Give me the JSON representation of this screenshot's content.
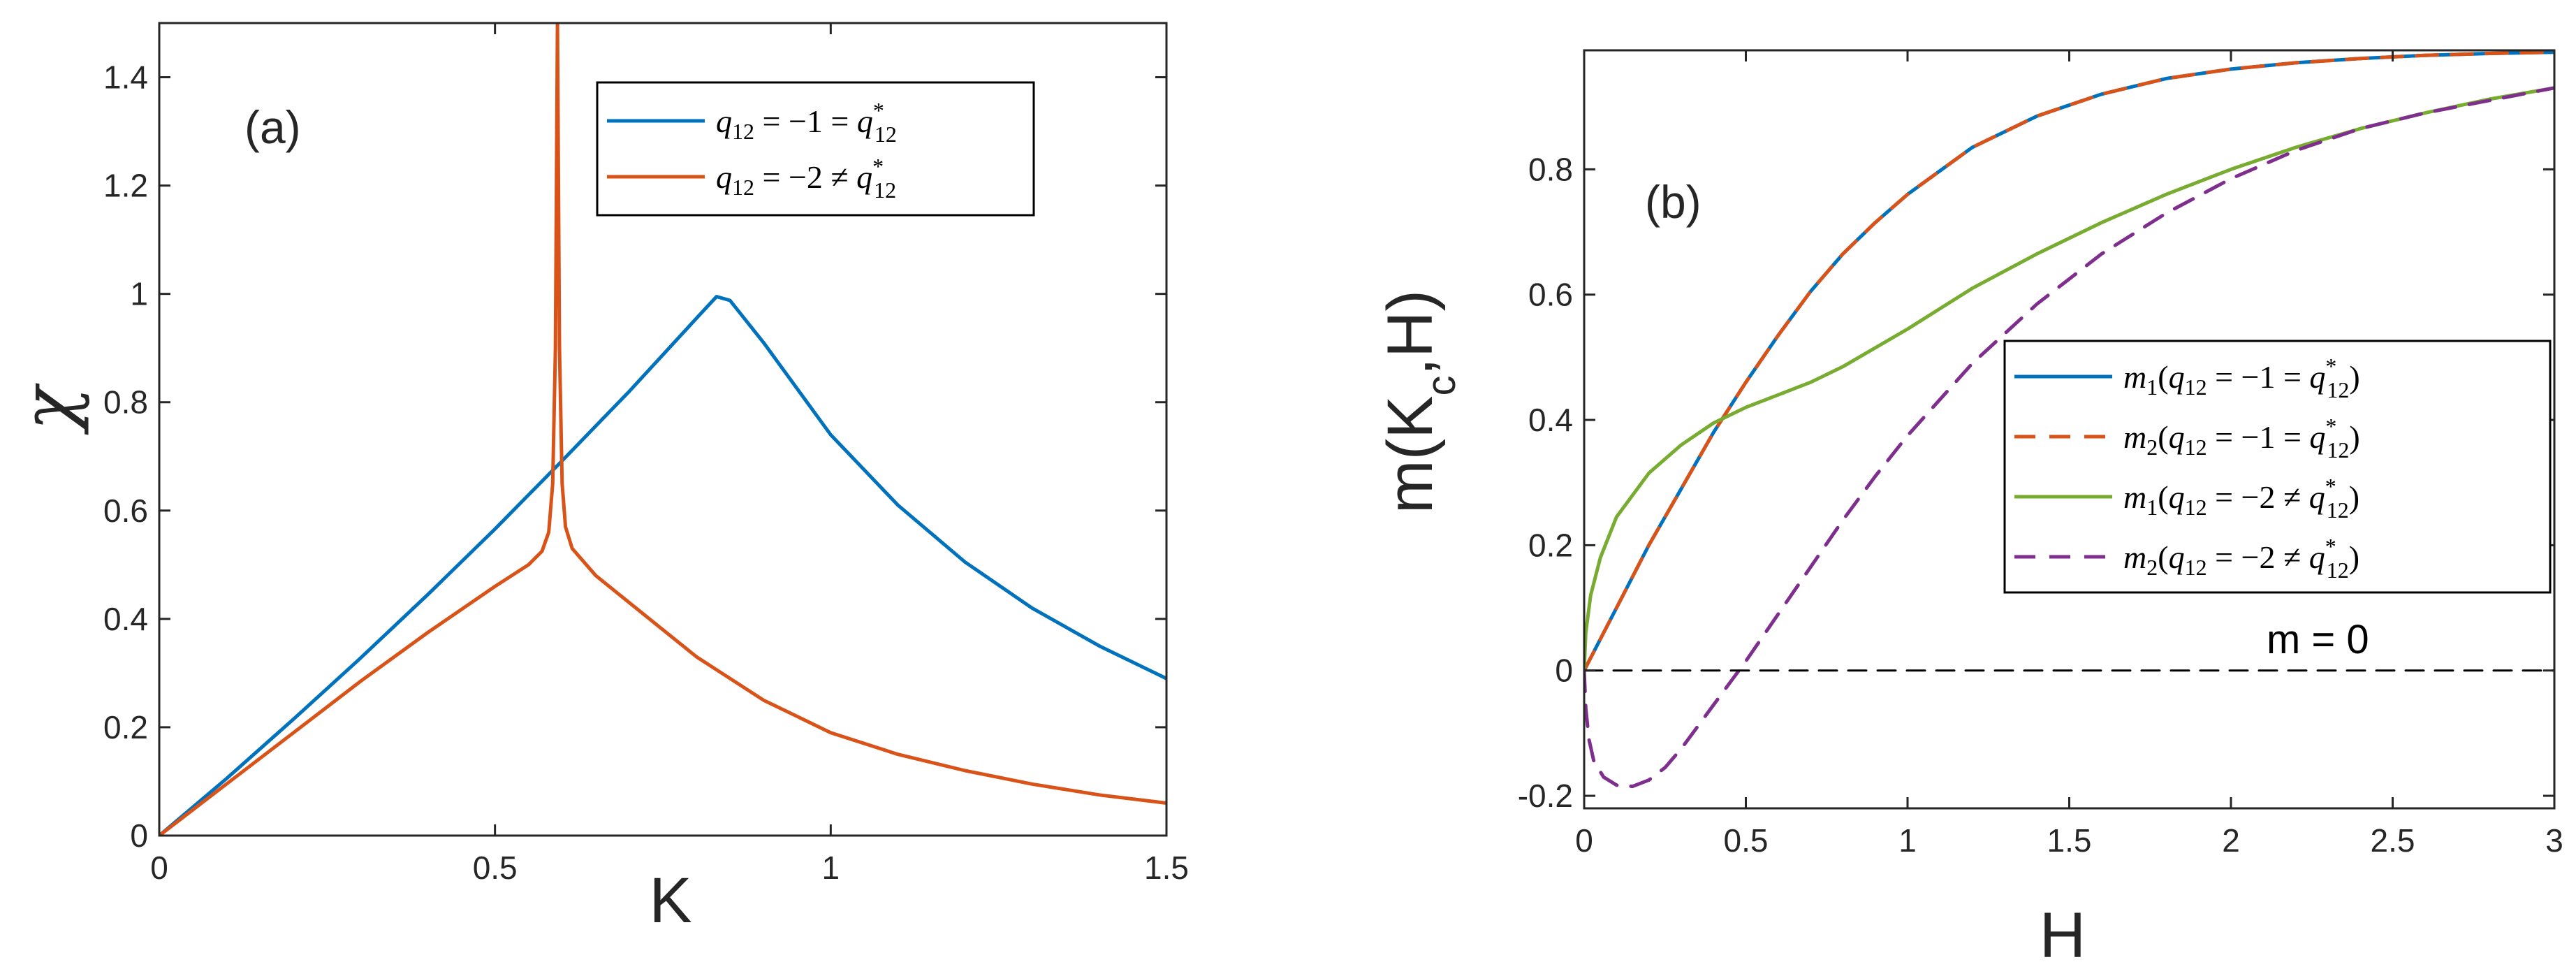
{
  "colors": {
    "blue": "#0072BD",
    "orange": "#D95319",
    "green": "#77AC30",
    "purple": "#7E2F8E",
    "black": "#000000",
    "axes": "#262626"
  },
  "chart_data": [
    {
      "type": "line",
      "panel_label": "(a)",
      "xlabel": "K",
      "ylabel": "χ",
      "xlim": [
        0,
        1.5
      ],
      "ylim": [
        0,
        1.5
      ],
      "xticks": [
        0,
        0.5,
        1,
        1.5
      ],
      "xtick_labels": [
        "0",
        "0.5",
        "1",
        "1.5"
      ],
      "yticks": [
        0,
        0.2,
        0.4,
        0.6,
        0.8,
        1.0,
        1.2,
        1.4
      ],
      "ytick_labels": [
        "0",
        "0.2",
        "0.4",
        "0.6",
        "0.8",
        "1",
        "1.2",
        "1.4"
      ],
      "grid": false,
      "legend_position": "top-right",
      "series": [
        {
          "name": "q12 = −1 = q12*",
          "color": "blue",
          "style": "solid",
          "x": [
            0,
            0.1,
            0.2,
            0.3,
            0.4,
            0.5,
            0.6,
            0.7,
            0.8,
            0.83,
            0.85,
            0.9,
            1.0,
            1.1,
            1.2,
            1.3,
            1.4,
            1.5
          ],
          "y": [
            0,
            0.105,
            0.215,
            0.328,
            0.445,
            0.566,
            0.692,
            0.82,
            0.955,
            0.995,
            0.988,
            0.91,
            0.74,
            0.61,
            0.505,
            0.42,
            0.35,
            0.29
          ]
        },
        {
          "name": "q12 = −2 ≠ q12*",
          "color": "orange",
          "style": "solid",
          "x": [
            0,
            0.1,
            0.2,
            0.3,
            0.4,
            0.5,
            0.55,
            0.57,
            0.58,
            0.586,
            0.59,
            0.593,
            0.596,
            0.6,
            0.605,
            0.615,
            0.65,
            0.7,
            0.8,
            0.9,
            1.0,
            1.1,
            1.2,
            1.3,
            1.4,
            1.5
          ],
          "y": [
            0,
            0.095,
            0.19,
            0.285,
            0.375,
            0.46,
            0.5,
            0.525,
            0.56,
            0.65,
            0.9,
            1.5,
            0.9,
            0.65,
            0.57,
            0.53,
            0.48,
            0.43,
            0.33,
            0.25,
            0.19,
            0.15,
            0.12,
            0.095,
            0.075,
            0.06
          ]
        }
      ],
      "legend_entries": [
        {
          "series": 0,
          "pre": "q",
          "sub": "12",
          "mid": " = −1 = q",
          "sup": "*",
          "sub2": "12",
          "suffix": ""
        },
        {
          "series": 1,
          "pre": "q",
          "sub": "12",
          "mid": " = −2 ≠ q",
          "sup": "*",
          "sub2": "12",
          "suffix": ""
        }
      ]
    },
    {
      "type": "line",
      "panel_label": "(b)",
      "xlabel": "H",
      "ylabel": "m(K",
      "ylabel_sub": "c",
      "ylabel_end": ",H)",
      "xlim": [
        0,
        3
      ],
      "ylim": [
        -0.22,
        0.99
      ],
      "xticks": [
        0,
        0.5,
        1,
        1.5,
        2,
        2.5,
        3
      ],
      "xtick_labels": [
        "0",
        "0.5",
        "1",
        "1.5",
        "2",
        "2.5",
        "3"
      ],
      "yticks": [
        -0.2,
        0,
        0.2,
        0.4,
        0.6,
        0.8
      ],
      "ytick_labels": [
        "-0.2",
        "0",
        "0.2",
        "0.4",
        "0.6",
        "0.8"
      ],
      "grid": false,
      "legend_position": "center-right",
      "annotation": "m = 0",
      "series": [
        {
          "name": "m1(q12 = −1 = q12*)",
          "color": "blue",
          "style": "solid",
          "x": [
            0,
            0.1,
            0.2,
            0.3,
            0.4,
            0.5,
            0.6,
            0.7,
            0.8,
            0.9,
            1.0,
            1.2,
            1.4,
            1.6,
            1.8,
            2.0,
            2.2,
            2.4,
            2.6,
            2.8,
            3.0
          ],
          "y": [
            0,
            0.1,
            0.2,
            0.29,
            0.38,
            0.46,
            0.535,
            0.605,
            0.665,
            0.715,
            0.76,
            0.835,
            0.885,
            0.92,
            0.945,
            0.96,
            0.97,
            0.977,
            0.982,
            0.985,
            0.987
          ]
        },
        {
          "name": "m2(q12 = −1 = q12*)",
          "color": "orange",
          "style": "dashed",
          "x": [
            0,
            0.1,
            0.2,
            0.3,
            0.4,
            0.5,
            0.6,
            0.7,
            0.8,
            0.9,
            1.0,
            1.2,
            1.4,
            1.6,
            1.8,
            2.0,
            2.2,
            2.4,
            2.6,
            2.8,
            3.0
          ],
          "y": [
            0,
            0.1,
            0.2,
            0.29,
            0.38,
            0.46,
            0.535,
            0.605,
            0.665,
            0.715,
            0.76,
            0.835,
            0.885,
            0.92,
            0.945,
            0.96,
            0.97,
            0.977,
            0.982,
            0.985,
            0.987
          ]
        },
        {
          "name": "m1(q12 = −2 ≠ q12*)",
          "color": "green",
          "style": "solid",
          "x": [
            0,
            0.005,
            0.02,
            0.05,
            0.1,
            0.2,
            0.3,
            0.4,
            0.5,
            0.6,
            0.7,
            0.8,
            1.0,
            1.2,
            1.4,
            1.6,
            1.8,
            2.0,
            2.2,
            2.4,
            2.6,
            2.8,
            3.0
          ],
          "y": [
            0,
            0.06,
            0.12,
            0.18,
            0.245,
            0.315,
            0.36,
            0.395,
            0.42,
            0.44,
            0.46,
            0.485,
            0.545,
            0.61,
            0.665,
            0.715,
            0.76,
            0.8,
            0.835,
            0.865,
            0.89,
            0.912,
            0.93
          ]
        },
        {
          "name": "m2(q12 = −2 ≠ q12*)",
          "color": "purple",
          "style": "dashed",
          "x": [
            0,
            0.005,
            0.015,
            0.03,
            0.06,
            0.1,
            0.15,
            0.2,
            0.25,
            0.3,
            0.35,
            0.4,
            0.45,
            0.5,
            0.6,
            0.7,
            0.8,
            0.9,
            1.0,
            1.2,
            1.4,
            1.6,
            1.8,
            2.0,
            2.2,
            2.4,
            2.6,
            2.8,
            3.0
          ],
          "y": [
            0,
            -0.06,
            -0.11,
            -0.145,
            -0.17,
            -0.183,
            -0.185,
            -0.175,
            -0.155,
            -0.125,
            -0.09,
            -0.055,
            -0.02,
            0.015,
            0.09,
            0.165,
            0.24,
            0.31,
            0.375,
            0.49,
            0.585,
            0.665,
            0.73,
            0.785,
            0.83,
            0.865,
            0.89,
            0.91,
            0.93
          ]
        },
        {
          "name": "m = 0",
          "color": "black",
          "style": "dashed",
          "thin": true,
          "x": [
            0,
            3
          ],
          "y": [
            0,
            0
          ]
        }
      ],
      "legend_entries": [
        {
          "series": 0,
          "pre": "m",
          "lsub": "1",
          "open": "(q",
          "sub": "12",
          "mid": " = −1 = q",
          "sup": "*",
          "sub2": "12",
          "suffix": ")"
        },
        {
          "series": 1,
          "pre": "m",
          "lsub": "2",
          "open": "(q",
          "sub": "12",
          "mid": " = −1 = q",
          "sup": "*",
          "sub2": "12",
          "suffix": ")"
        },
        {
          "series": 2,
          "pre": "m",
          "lsub": "1",
          "open": "(q",
          "sub": "12",
          "mid": " = −2 ≠ q",
          "sup": "*",
          "sub2": "12",
          "suffix": ")"
        },
        {
          "series": 3,
          "pre": "m",
          "lsub": "2",
          "open": "(q",
          "sub": "12",
          "mid": " = −2 ≠ q",
          "sup": "*",
          "sub2": "12",
          "suffix": ")"
        }
      ]
    }
  ]
}
